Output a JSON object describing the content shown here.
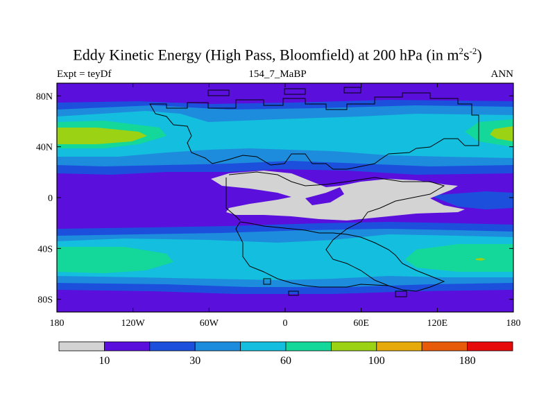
{
  "title": {
    "text": "Eddy Kinetic Energy (High Pass, Bloomfield) at 200 hPa (in m",
    "sup1": "2",
    "mid": "s",
    "sup2": "-2",
    "end": ")"
  },
  "subtitle": {
    "left": "Expt = teyDf",
    "center": "154_7_MaBP",
    "right": "ANN"
  },
  "map": {
    "lat_ticks": [
      "80N",
      "40N",
      "0",
      "40S",
      "80S"
    ],
    "lon_ticks": [
      "180",
      "120W",
      "60W",
      "0",
      "60E",
      "120E",
      "180"
    ],
    "lat_values": [
      80,
      40,
      0,
      -40,
      -80
    ],
    "lon_values": [
      -180,
      -120,
      -60,
      0,
      60,
      120,
      180
    ]
  },
  "colorbar": {
    "colors": [
      "#d3d3d3",
      "#5a0fdc",
      "#1c50dc",
      "#1e8cdc",
      "#14bede",
      "#14d79a",
      "#9bd214",
      "#e6aa0a",
      "#e65a0a",
      "#e60a0a"
    ],
    "labels": [
      {
        "text": "10",
        "boundary": 1
      },
      {
        "text": "30",
        "boundary": 3
      },
      {
        "text": "60",
        "boundary": 5
      },
      {
        "text": "100",
        "boundary": 7
      },
      {
        "text": "180",
        "boundary": 9
      }
    ]
  }
}
